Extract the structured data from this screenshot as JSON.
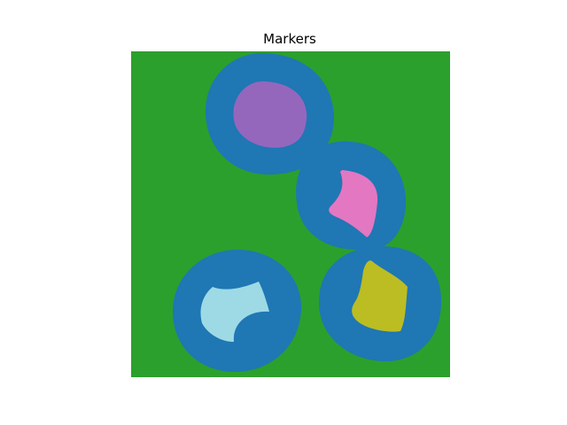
{
  "chart_data": {
    "type": "heatmap",
    "title": "Markers",
    "xlabel": "",
    "ylabel": "",
    "axes_visible": false,
    "grid": false,
    "legend": "none",
    "label_colors": {
      "background": "#2ca02c",
      "boundary": "#1f77b4",
      "marker_1": "#9467bd",
      "marker_2": "#e377c2",
      "marker_3": "#9edae5",
      "marker_4": "#bcbd22"
    },
    "regions": [
      {
        "label": "marker_1",
        "center": [
          290,
          128
        ]
      },
      {
        "label": "marker_2",
        "center": [
          395,
          222
        ]
      },
      {
        "label": "marker_3",
        "center": [
          265,
          352
        ]
      },
      {
        "label": "marker_4",
        "center": [
          430,
          343
        ]
      }
    ]
  }
}
